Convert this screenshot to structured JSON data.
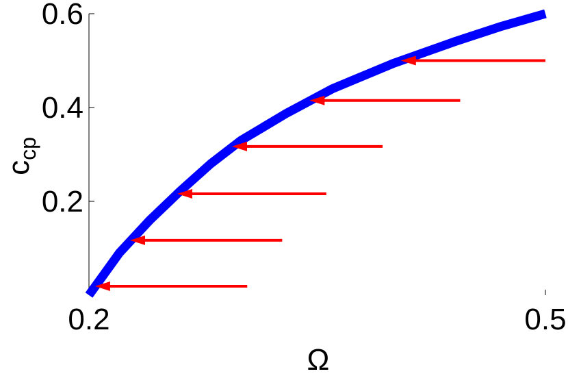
{
  "chart_data": {
    "type": "line",
    "xlabel": "Ω",
    "ylabel": "c",
    "ylabel_sub": "cp",
    "xlim": [
      0.2,
      0.5
    ],
    "ylim": [
      0,
      0.6
    ],
    "xticks": [
      0.2,
      0.5
    ],
    "yticks": [
      0.2,
      0.4,
      0.6
    ],
    "series": [
      {
        "color": "#0000ff",
        "x": [
          0.2,
          0.21,
          0.22,
          0.24,
          0.26,
          0.28,
          0.3,
          0.33,
          0.36,
          0.4,
          0.44,
          0.47,
          0.5
        ],
        "values": [
          0,
          0.045,
          0.09,
          0.16,
          0.222,
          0.28,
          0.33,
          0.388,
          0.44,
          0.494,
          0.54,
          0.572,
          0.6
        ]
      }
    ],
    "arrows": {
      "color": "#ff0000",
      "y": [
        0.5,
        0.415,
        0.317,
        0.216,
        0.117,
        0.019
      ],
      "x_start": [
        0.5,
        0.444,
        0.393,
        0.356,
        0.327,
        0.304
      ],
      "x_end": [
        0.405,
        0.345,
        0.294,
        0.258,
        0.227,
        0.204
      ]
    }
  }
}
